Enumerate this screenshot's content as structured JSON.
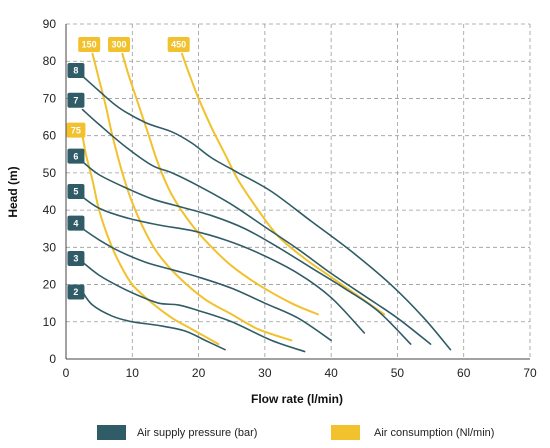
{
  "chart_data": {
    "type": "line",
    "xlabel": "Flow rate (l/min)",
    "ylabel": "Head (m)",
    "xlim": [
      0,
      70
    ],
    "ylim": [
      0,
      90
    ],
    "xticks": [
      "0",
      "10",
      "20",
      "30",
      "40",
      "50",
      "60",
      "70"
    ],
    "yticks": [
      "0",
      "10",
      "20",
      "30",
      "40",
      "50",
      "60",
      "70",
      "80",
      "90"
    ],
    "grid": true,
    "legend_position": "bottom",
    "legend": [
      {
        "label": "Air supply pressure (bar)",
        "color": "#2f5c66"
      },
      {
        "label": "Air consumption (Nl/min)",
        "color": "#f2c12e"
      }
    ],
    "pressure_series": [
      {
        "label": "2",
        "label_at": [
          1.5,
          18
        ],
        "points": [
          [
            2.5,
            18
          ],
          [
            4,
            14.5
          ],
          [
            7,
            11.5
          ],
          [
            10,
            10
          ],
          [
            14,
            9
          ],
          [
            18,
            7.5
          ],
          [
            21,
            5
          ],
          [
            24,
            2.5
          ]
        ]
      },
      {
        "label": "3",
        "label_at": [
          1.5,
          27
        ],
        "points": [
          [
            2.5,
            26
          ],
          [
            5,
            22.5
          ],
          [
            8,
            19.5
          ],
          [
            11,
            17
          ],
          [
            14,
            15
          ],
          [
            17,
            14.5
          ],
          [
            20,
            13
          ],
          [
            25,
            10
          ],
          [
            31,
            5
          ],
          [
            36,
            2
          ]
        ]
      },
      {
        "label": "4",
        "label_at": [
          1.5,
          36.5
        ],
        "points": [
          [
            2.5,
            35
          ],
          [
            5,
            32
          ],
          [
            8,
            29
          ],
          [
            12,
            26
          ],
          [
            16,
            24
          ],
          [
            20,
            22
          ],
          [
            25,
            19
          ],
          [
            30,
            15
          ],
          [
            35,
            11
          ],
          [
            40,
            5
          ]
        ]
      },
      {
        "label": "5",
        "label_at": [
          1.5,
          45
        ],
        "points": [
          [
            2.5,
            43.5
          ],
          [
            5,
            40.5
          ],
          [
            9,
            38
          ],
          [
            14,
            36
          ],
          [
            19,
            34.5
          ],
          [
            24,
            32
          ],
          [
            29,
            28.5
          ],
          [
            35,
            23
          ],
          [
            40,
            16.5
          ],
          [
            45,
            7
          ]
        ]
      },
      {
        "label": "6",
        "label_at": [
          1.5,
          54.5
        ],
        "points": [
          [
            2.5,
            53
          ],
          [
            5,
            49.5
          ],
          [
            9,
            46
          ],
          [
            13,
            43
          ],
          [
            17,
            41
          ],
          [
            22,
            38.5
          ],
          [
            27,
            35
          ],
          [
            32,
            30
          ],
          [
            37,
            24.5
          ],
          [
            42,
            19
          ],
          [
            47,
            13
          ],
          [
            52,
            4
          ]
        ]
      },
      {
        "label": "7",
        "label_at": [
          1.5,
          69.5
        ],
        "points": [
          [
            2.5,
            67
          ],
          [
            5,
            63
          ],
          [
            9,
            57
          ],
          [
            13,
            52
          ],
          [
            16,
            50
          ],
          [
            20,
            46.5
          ],
          [
            25,
            41.5
          ],
          [
            30,
            35.5
          ],
          [
            35,
            29.5
          ],
          [
            40,
            23
          ],
          [
            45,
            17
          ],
          [
            50,
            11
          ],
          [
            55,
            4
          ]
        ]
      },
      {
        "label": "8",
        "label_at": [
          1.5,
          77.5
        ],
        "points": [
          [
            2.5,
            76
          ],
          [
            5,
            72
          ],
          [
            8,
            67.5
          ],
          [
            12,
            63.5
          ],
          [
            16,
            61
          ],
          [
            19,
            58
          ],
          [
            22,
            54
          ],
          [
            26,
            50
          ],
          [
            31,
            45
          ],
          [
            37,
            37
          ],
          [
            43,
            29
          ],
          [
            49,
            20
          ],
          [
            54,
            11
          ],
          [
            58,
            2.5
          ]
        ]
      }
    ],
    "consumption_series": [
      {
        "label": "75",
        "label_at": [
          1.5,
          61.5
        ],
        "points": [
          [
            2.5,
            60
          ],
          [
            3,
            55
          ],
          [
            4,
            48
          ],
          [
            5,
            40
          ],
          [
            6.5,
            32
          ],
          [
            8,
            26
          ],
          [
            10,
            20
          ],
          [
            13,
            15
          ],
          [
            16,
            11
          ],
          [
            19,
            8
          ],
          [
            23,
            4
          ]
        ]
      },
      {
        "label": "150",
        "label_at": [
          3.5,
          84.5
        ],
        "points": [
          [
            4,
            82
          ],
          [
            5,
            75
          ],
          [
            6,
            68
          ],
          [
            7,
            60
          ],
          [
            8.5,
            50
          ],
          [
            10,
            42
          ],
          [
            12,
            34
          ],
          [
            14,
            28
          ],
          [
            17,
            22
          ],
          [
            21,
            16
          ],
          [
            25,
            12
          ],
          [
            29,
            8
          ],
          [
            34,
            5
          ]
        ]
      },
      {
        "label": "300",
        "label_at": [
          8,
          84.5
        ],
        "points": [
          [
            8.5,
            82
          ],
          [
            9.5,
            76
          ],
          [
            11,
            68
          ],
          [
            12.5,
            60
          ],
          [
            14,
            52
          ],
          [
            16,
            44
          ],
          [
            19,
            36
          ],
          [
            22,
            30
          ],
          [
            25,
            25
          ],
          [
            29,
            20
          ],
          [
            34,
            15
          ],
          [
            38,
            12
          ]
        ]
      },
      {
        "label": "450",
        "label_at": [
          17,
          84.5
        ],
        "points": [
          [
            17.5,
            82
          ],
          [
            18.5,
            77
          ],
          [
            20,
            70
          ],
          [
            22,
            62
          ],
          [
            24,
            55
          ],
          [
            26,
            48
          ],
          [
            29,
            40
          ],
          [
            32,
            33
          ],
          [
            36,
            27
          ],
          [
            40,
            22
          ],
          [
            44,
            17
          ],
          [
            48,
            12
          ]
        ]
      }
    ]
  }
}
